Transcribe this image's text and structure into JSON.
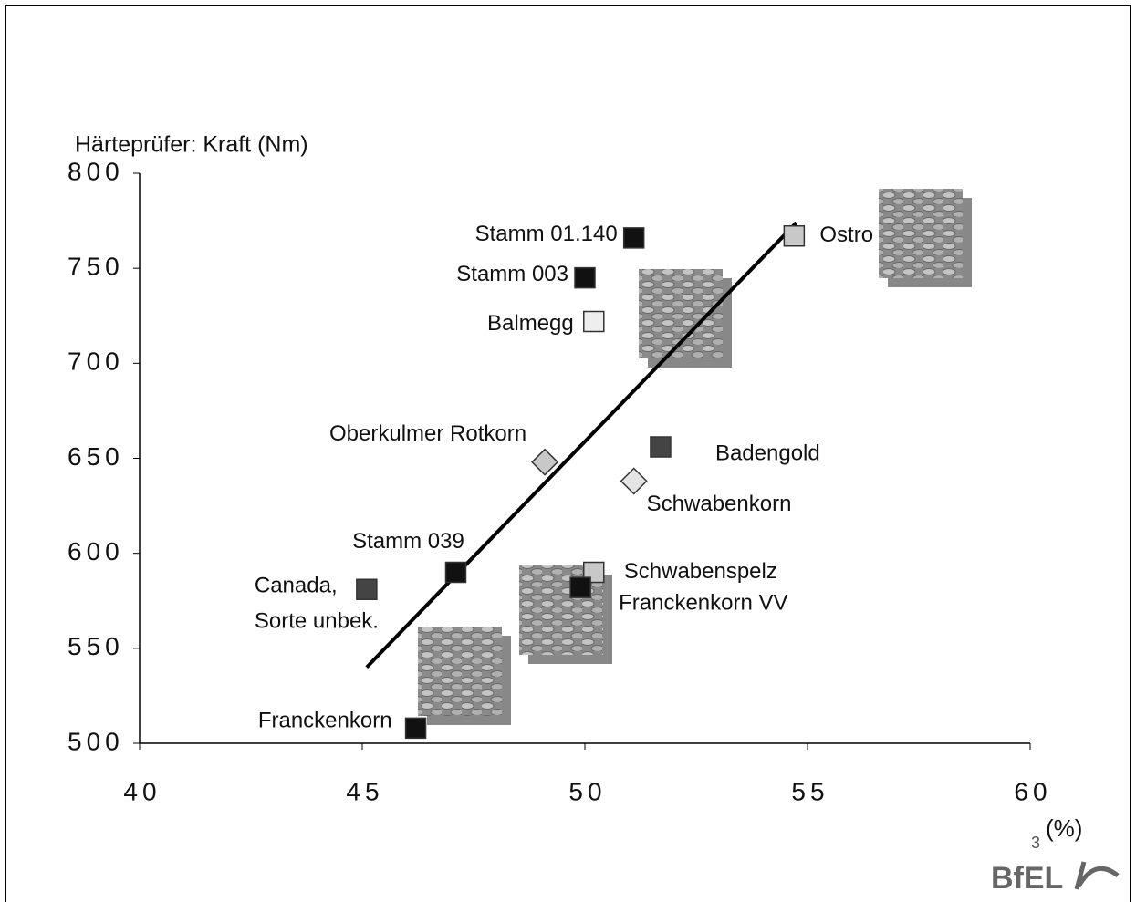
{
  "chart_data": {
    "type": "scatter",
    "y_label": "Härteprüfer: Kraft (Nm)",
    "x_label": "(%)",
    "page_number": "3",
    "logo": "BfEL",
    "xlim": [
      40,
      60
    ],
    "xticks": [
      40,
      45,
      50,
      55,
      60
    ],
    "ylim": [
      500,
      800
    ],
    "yticks": [
      500,
      550,
      600,
      650,
      700,
      750,
      800
    ],
    "series": [
      {
        "name": "Stamm 01.140",
        "color": "#111111",
        "marker": "square",
        "x": [
          51.1
        ],
        "values": [
          766
        ]
      },
      {
        "name": "Stamm 003",
        "color": "#111111",
        "marker": "square",
        "x": [
          50.0
        ],
        "values": [
          745
        ]
      },
      {
        "name": "Balmegg",
        "color": "#eeeeee",
        "marker": "square",
        "x": [
          50.2
        ],
        "values": [
          722
        ]
      },
      {
        "name": "Ostro",
        "color": "#c8c8c8",
        "marker": "square",
        "x": [
          54.7
        ],
        "values": [
          767
        ]
      },
      {
        "name": "Oberkulmer Rotkorn",
        "color": "#c8c8c8",
        "marker": "diamond",
        "x": [
          49.1
        ],
        "values": [
          648
        ]
      },
      {
        "name": "Badengold",
        "color": "#444444",
        "marker": "square",
        "x": [
          51.7
        ],
        "values": [
          656
        ]
      },
      {
        "name": "Schwabenkorn",
        "color": "#e4e4e4",
        "marker": "diamond",
        "x": [
          51.1
        ],
        "values": [
          638
        ]
      },
      {
        "name": "Stamm 039",
        "color": "#111111",
        "marker": "square",
        "x": [
          47.1
        ],
        "values": [
          590
        ]
      },
      {
        "name": [
          "Canada,",
          "Sorte unbek."
        ],
        "color": "#444444",
        "marker": "square",
        "x": [
          45.1
        ],
        "values": [
          581
        ]
      },
      {
        "name": "Schwabenspelz",
        "color": "#c8c8c8",
        "marker": "square",
        "x": [
          50.2
        ],
        "values": [
          590
        ]
      },
      {
        "name": "Franckenkorn VV",
        "color": "#111111",
        "marker": "square",
        "x": [
          49.9
        ],
        "values": [
          582
        ]
      },
      {
        "name": "Franckenkorn",
        "color": "#111111",
        "marker": "square",
        "x": [
          46.2
        ],
        "values": [
          508
        ]
      }
    ],
    "trendline": {
      "color": "#000000",
      "x": [
        45.1,
        54.75
      ],
      "values": [
        540,
        774
      ]
    }
  }
}
